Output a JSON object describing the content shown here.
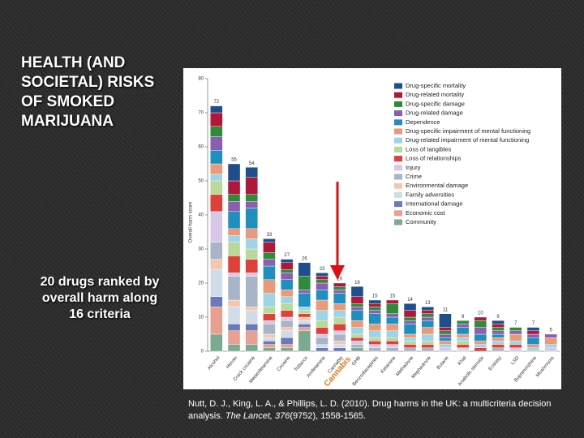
{
  "slide": {
    "title": "Health (and societal) risks of smoked marijuana",
    "subtitle": "20 drugs ranked by overall harm along 16 criteria",
    "citation": {
      "authors": "Nutt, D. J., King, L. A., & Phillips, L. D. (2010). Drug harms in the UK: a multicriteria decision analysis.",
      "journal": "The Lancet,",
      "volume": "376",
      "rest": "(9752), 1558-1565."
    }
  },
  "chart_data": {
    "type": "stacked_bar",
    "y_label": "Overall harm score",
    "annotation": "Cannabis",
    "categories": [
      "Alcohol",
      "Heroin",
      "Crack cocaine",
      "Metamfetamine",
      "Cocaine",
      "Tobacco",
      "Amfetamine",
      "Cannabis",
      "GHB",
      "Benzodiazepines",
      "Ketamine",
      "Methadone",
      "Mephedrone",
      "Butane",
      "Khat",
      "Anabolic steroids",
      "Ecstasy",
      "LSD",
      "Buprenorphine",
      "Mushrooms"
    ],
    "totals": [
      72,
      55,
      54,
      33,
      27,
      26,
      23,
      20,
      19,
      15,
      15,
      14,
      13,
      11,
      9,
      10,
      9,
      7,
      7,
      5
    ],
    "ylim": [
      0,
      80
    ],
    "yticks": [
      0,
      10,
      20,
      30,
      40,
      50,
      60,
      70,
      80
    ],
    "series": [
      {
        "name": "Drug-specific mortality",
        "color": "#1f4e8c",
        "values": [
          2,
          5,
          3,
          1,
          1,
          4,
          1,
          0,
          3,
          1,
          0,
          2,
          1,
          4,
          0,
          0,
          1,
          0,
          1,
          0
        ]
      },
      {
        "name": "Drug-related mortality",
        "color": "#b0173a",
        "values": [
          4,
          4,
          5,
          3,
          2,
          0,
          1,
          1,
          2,
          1,
          1,
          2,
          1,
          1,
          0,
          1,
          1,
          0,
          1,
          0
        ]
      },
      {
        "name": "Drug-specific damage",
        "color": "#2e8b3a",
        "values": [
          3,
          2,
          2,
          2,
          1,
          4,
          1,
          1,
          1,
          1,
          3,
          1,
          1,
          1,
          1,
          2,
          1,
          1,
          0,
          0
        ]
      },
      {
        "name": "Drug-related damage",
        "color": "#8a5fb0",
        "values": [
          4,
          3,
          2,
          2,
          2,
          1,
          2,
          1,
          1,
          1,
          1,
          1,
          1,
          1,
          1,
          2,
          1,
          1,
          1,
          1
        ]
      },
      {
        "name": "Dependence",
        "color": "#1f8fbf",
        "values": [
          4,
          5,
          6,
          4,
          3,
          4,
          3,
          3,
          3,
          3,
          2,
          3,
          2,
          1,
          2,
          2,
          1,
          0,
          2,
          0
        ]
      },
      {
        "name": "Drug-specific impairment of mental functioning",
        "color": "#e89a7a",
        "values": [
          3,
          2,
          3,
          4,
          2,
          0,
          3,
          2,
          2,
          2,
          2,
          1,
          2,
          1,
          1,
          1,
          1,
          2,
          1,
          2
        ]
      },
      {
        "name": "Drug-related impairment of mental functioning",
        "color": "#9fd3e6",
        "values": [
          2,
          2,
          3,
          4,
          2,
          1,
          3,
          2,
          2,
          2,
          2,
          1,
          2,
          1,
          1,
          1,
          1,
          1,
          1,
          1
        ]
      },
      {
        "name": "Loss of tangibles",
        "color": "#b8d99a",
        "values": [
          4,
          4,
          3,
          2,
          2,
          1,
          2,
          2,
          1,
          1,
          1,
          1,
          1,
          0,
          1,
          0,
          0,
          0,
          0,
          0
        ]
      },
      {
        "name": "Loss of relationships",
        "color": "#e0403a",
        "values": [
          5,
          5,
          4,
          2,
          2,
          1,
          2,
          2,
          1,
          1,
          1,
          1,
          1,
          0,
          1,
          1,
          1,
          1,
          0,
          0
        ]
      },
      {
        "name": "Injury",
        "color": "#d8c8e8",
        "values": [
          9,
          1,
          1,
          1,
          1,
          0,
          1,
          1,
          1,
          1,
          1,
          0,
          0,
          1,
          0,
          0,
          0,
          1,
          0,
          1
        ]
      },
      {
        "name": "Crime",
        "color": "#a8b4c8",
        "values": [
          5,
          7,
          9,
          3,
          2,
          0,
          2,
          2,
          1,
          1,
          1,
          1,
          1,
          0,
          0,
          0,
          1,
          0,
          0,
          0
        ]
      },
      {
        "name": "Environmental damage",
        "color": "#f2c8b0",
        "values": [
          3,
          2,
          1,
          1,
          1,
          1,
          0,
          1,
          0,
          0,
          0,
          0,
          0,
          0,
          0,
          0,
          0,
          0,
          0,
          0
        ]
      },
      {
        "name": "Family adversities",
        "color": "#d0dce8",
        "values": [
          8,
          5,
          4,
          1,
          2,
          1,
          1,
          1,
          0,
          0,
          0,
          0,
          0,
          0,
          1,
          0,
          0,
          0,
          0,
          0
        ]
      },
      {
        "name": "International damage",
        "color": "#6a7ab8",
        "values": [
          3,
          2,
          2,
          1,
          2,
          1,
          1,
          1,
          0,
          0,
          0,
          0,
          0,
          0,
          0,
          0,
          0,
          0,
          0,
          0
        ]
      },
      {
        "name": "Economic cost",
        "color": "#e8a090",
        "values": [
          8,
          4,
          4,
          1,
          1,
          1,
          0,
          0,
          0,
          0,
          0,
          0,
          0,
          0,
          0,
          0,
          0,
          0,
          0,
          0
        ]
      },
      {
        "name": "Community",
        "color": "#7aaa90",
        "values": [
          5,
          2,
          2,
          1,
          1,
          6,
          0,
          0,
          1,
          0,
          0,
          0,
          0,
          0,
          0,
          0,
          0,
          0,
          0,
          0
        ]
      }
    ]
  }
}
